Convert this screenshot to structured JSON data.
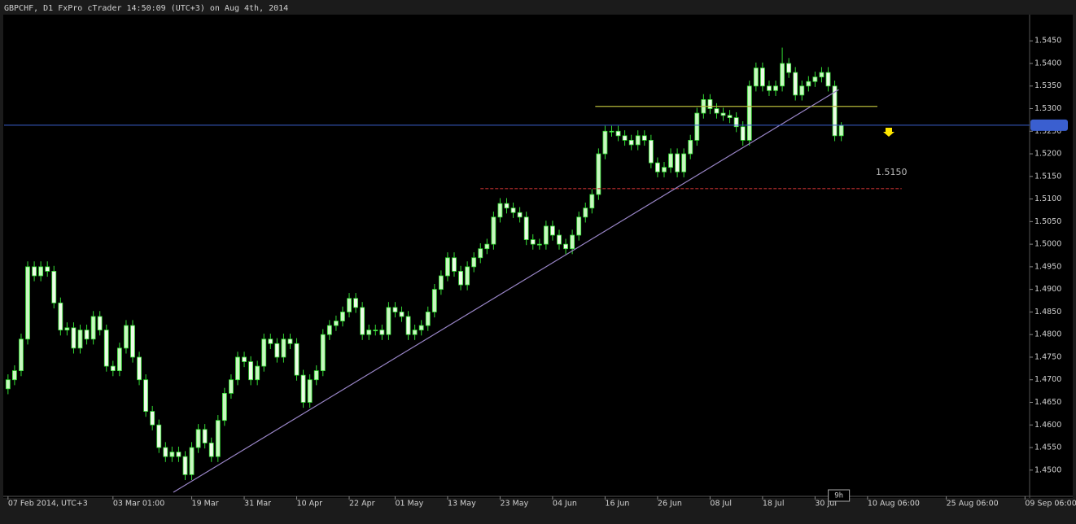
{
  "chart_data": {
    "type": "candlestick",
    "title": "GBPCHF, D1 FxPro cTrader 14:50:09 (UTC+3) on Aug 4th, 2014",
    "bull_color": "#c8f7c0",
    "bear_color": "#eefce8",
    "wick_color": "#33dd33",
    "open": [
      1.468,
      1.47,
      1.472,
      1.479,
      1.495,
      1.493,
      1.495,
      1.494,
      1.487,
      1.481,
      1.4815,
      1.477,
      1.481,
      1.479,
      1.484,
      1.481,
      1.473,
      1.472,
      1.477,
      1.482,
      1.475,
      1.47,
      1.463,
      1.46,
      1.455,
      1.453,
      1.454,
      1.453,
      1.449,
      1.455,
      1.459,
      1.456,
      1.453,
      1.461,
      1.467,
      1.47,
      1.475,
      1.474,
      1.47,
      1.473,
      1.479,
      1.478,
      1.475,
      1.479,
      1.478,
      1.471,
      1.465,
      1.47,
      1.472,
      1.48,
      1.482,
      1.483,
      1.485,
      1.488,
      1.486,
      1.48,
      1.481,
      1.481,
      1.48,
      1.486,
      1.485,
      1.484,
      1.48,
      1.481,
      1.482,
      1.485,
      1.49,
      1.493,
      1.497,
      1.494,
      1.491,
      1.495,
      1.497,
      1.499,
      1.5,
      1.506,
      1.509,
      1.508,
      1.507,
      1.506,
      1.501,
      1.5,
      1.5,
      1.504,
      1.502,
      1.5,
      1.499,
      1.502,
      1.506,
      1.508,
      1.511,
      1.52,
      1.525,
      1.525,
      1.524,
      1.523,
      1.522,
      1.524,
      1.523,
      1.518,
      1.516,
      1.517,
      1.52,
      1.516,
      1.52,
      1.523,
      1.529,
      1.532,
      1.53,
      1.529,
      1.5285,
      1.528,
      1.526,
      1.523,
      1.535,
      1.539,
      1.535,
      1.534,
      1.535,
      1.54,
      1.538,
      1.533,
      1.535,
      1.536,
      1.537,
      1.538,
      1.535,
      1.524
    ],
    "high": [
      1.4712,
      1.4732,
      1.4802,
      1.4962,
      1.4962,
      1.4962,
      1.4962,
      1.4952,
      1.4882,
      1.4827,
      1.4827,
      1.4822,
      1.4822,
      1.4852,
      1.4852,
      1.4822,
      1.4742,
      1.4782,
      1.4832,
      1.4832,
      1.4762,
      1.4712,
      1.4642,
      1.4612,
      1.4562,
      1.4552,
      1.4552,
      1.4542,
      1.4562,
      1.4602,
      1.4602,
      1.4572,
      1.4622,
      1.4682,
      1.4712,
      1.4762,
      1.4762,
      1.4752,
      1.4742,
      1.4802,
      1.4802,
      1.4792,
      1.4802,
      1.4802,
      1.4792,
      1.4722,
      1.4712,
      1.4732,
      1.4812,
      1.4832,
      1.4842,
      1.4862,
      1.4892,
      1.4892,
      1.4872,
      1.4822,
      1.4822,
      1.4822,
      1.4872,
      1.4872,
      1.4862,
      1.4852,
      1.4822,
      1.4832,
      1.4862,
      1.4912,
      1.4942,
      1.4982,
      1.4982,
      1.4952,
      1.4962,
      1.4982,
      1.5002,
      1.5012,
      1.5072,
      1.5102,
      1.5102,
      1.5092,
      1.5082,
      1.5072,
      1.5022,
      1.5012,
      1.5052,
      1.5052,
      1.5032,
      1.5012,
      1.5032,
      1.5072,
      1.5092,
      1.5122,
      1.5212,
      1.5262,
      1.5262,
      1.5262,
      1.5252,
      1.5242,
      1.5252,
      1.5252,
      1.5242,
      1.5192,
      1.5182,
      1.5212,
      1.5212,
      1.5212,
      1.5242,
      1.5302,
      1.5332,
      1.5332,
      1.5312,
      1.5302,
      1.5297,
      1.5292,
      1.5272,
      1.5362,
      1.5402,
      1.5402,
      1.5362,
      1.5362,
      1.5435,
      1.5412,
      1.5392,
      1.5362,
      1.5372,
      1.5382,
      1.5392,
      1.5392,
      1.5362,
      1.527
    ],
    "low": [
      1.4668,
      1.4688,
      1.4708,
      1.4778,
      1.4918,
      1.4918,
      1.4928,
      1.4858,
      1.4798,
      1.4798,
      1.4758,
      1.4758,
      1.4778,
      1.4778,
      1.4798,
      1.4718,
      1.4708,
      1.4708,
      1.4758,
      1.4738,
      1.4688,
      1.4618,
      1.4588,
      1.4538,
      1.4518,
      1.4518,
      1.4518,
      1.4478,
      1.4478,
      1.4538,
      1.4548,
      1.4518,
      1.4518,
      1.4598,
      1.4658,
      1.4688,
      1.4728,
      1.4688,
      1.4688,
      1.4718,
      1.4768,
      1.4738,
      1.4738,
      1.4768,
      1.4698,
      1.4638,
      1.4638,
      1.4688,
      1.4708,
      1.4788,
      1.4808,
      1.4818,
      1.4838,
      1.4848,
      1.4788,
      1.4788,
      1.4798,
      1.4788,
      1.4788,
      1.4838,
      1.4828,
      1.4788,
      1.4788,
      1.4798,
      1.4808,
      1.4838,
      1.4888,
      1.4918,
      1.4928,
      1.4898,
      1.4898,
      1.4938,
      1.4958,
      1.4978,
      1.4988,
      1.5048,
      1.5068,
      1.5058,
      1.5048,
      1.4998,
      1.4988,
      1.4988,
      1.4988,
      1.5008,
      1.4988,
      1.4978,
      1.4978,
      1.5008,
      1.5048,
      1.5068,
      1.5098,
      1.5188,
      1.5238,
      1.5228,
      1.5218,
      1.5208,
      1.5208,
      1.5218,
      1.5168,
      1.5148,
      1.5148,
      1.5158,
      1.5148,
      1.5148,
      1.5188,
      1.5218,
      1.5278,
      1.5288,
      1.5278,
      1.5273,
      1.5268,
      1.5248,
      1.5218,
      1.5218,
      1.5338,
      1.5338,
      1.5328,
      1.5328,
      1.5338,
      1.5368,
      1.5318,
      1.5318,
      1.5338,
      1.5348,
      1.5358,
      1.5338,
      1.5228,
      1.5228
    ],
    "close": [
      1.47,
      1.472,
      1.479,
      1.495,
      1.493,
      1.495,
      1.494,
      1.487,
      1.481,
      1.4815,
      1.477,
      1.481,
      1.479,
      1.484,
      1.481,
      1.473,
      1.472,
      1.477,
      1.482,
      1.475,
      1.47,
      1.463,
      1.46,
      1.455,
      1.453,
      1.454,
      1.453,
      1.449,
      1.455,
      1.459,
      1.456,
      1.453,
      1.461,
      1.467,
      1.47,
      1.475,
      1.474,
      1.47,
      1.473,
      1.479,
      1.478,
      1.475,
      1.479,
      1.478,
      1.471,
      1.465,
      1.47,
      1.472,
      1.48,
      1.482,
      1.483,
      1.485,
      1.488,
      1.486,
      1.48,
      1.481,
      1.481,
      1.48,
      1.486,
      1.485,
      1.484,
      1.48,
      1.481,
      1.482,
      1.485,
      1.49,
      1.493,
      1.497,
      1.494,
      1.491,
      1.495,
      1.497,
      1.499,
      1.5,
      1.506,
      1.509,
      1.508,
      1.507,
      1.506,
      1.501,
      1.5,
      1.5,
      1.504,
      1.502,
      1.5,
      1.499,
      1.502,
      1.506,
      1.508,
      1.511,
      1.52,
      1.525,
      1.525,
      1.524,
      1.523,
      1.522,
      1.524,
      1.523,
      1.518,
      1.516,
      1.517,
      1.52,
      1.516,
      1.52,
      1.523,
      1.529,
      1.532,
      1.53,
      1.529,
      1.5285,
      1.528,
      1.526,
      1.523,
      1.535,
      1.539,
      1.535,
      1.534,
      1.535,
      1.54,
      1.538,
      1.533,
      1.535,
      1.536,
      1.537,
      1.538,
      1.535,
      1.524,
      1.5263
    ],
    "xlim": [
      -0.6,
      155.7
    ],
    "xticks": [
      {
        "value": 0,
        "label": "07 Feb 2014, UTC+3"
      },
      {
        "value": 16,
        "label": "03 Mar 01:00"
      },
      {
        "value": 28,
        "label": "19 Mar"
      },
      {
        "value": 36,
        "label": "31 Mar"
      },
      {
        "value": 44,
        "label": "10 Apr"
      },
      {
        "value": 52,
        "label": "22 Apr"
      },
      {
        "value": 59,
        "label": "01 May"
      },
      {
        "value": 67,
        "label": "13 May"
      },
      {
        "value": 75,
        "label": "23 May"
      },
      {
        "value": 83,
        "label": "04 Jun"
      },
      {
        "value": 91,
        "label": "16 Jun"
      },
      {
        "value": 99,
        "label": "26 Jun"
      },
      {
        "value": 107,
        "label": "08 Jul"
      },
      {
        "value": 115,
        "label": "18 Jul"
      },
      {
        "value": 123,
        "label": "30 Jul"
      },
      {
        "value": 131,
        "label": "10 Aug 06:00"
      },
      {
        "value": 143,
        "label": "25 Aug 06:00"
      },
      {
        "value": 155,
        "label": "09 Sep 06:00"
      }
    ],
    "ylim": [
      1.4442,
      1.5508
    ],
    "yticks": [
      {
        "value": 1.45,
        "label": "1.4500"
      },
      {
        "value": 1.455,
        "label": "1.4550"
      },
      {
        "value": 1.46,
        "label": "1.4600"
      },
      {
        "value": 1.465,
        "label": "1.4650"
      },
      {
        "value": 1.47,
        "label": "1.4700"
      },
      {
        "value": 1.475,
        "label": "1.4750"
      },
      {
        "value": 1.48,
        "label": "1.4800"
      },
      {
        "value": 1.485,
        "label": "1.4850"
      },
      {
        "value": 1.49,
        "label": "1.4900"
      },
      {
        "value": 1.495,
        "label": "1.4950"
      },
      {
        "value": 1.5,
        "label": "1.5000"
      },
      {
        "value": 1.505,
        "label": "1.5050"
      },
      {
        "value": 1.51,
        "label": "1.5100"
      },
      {
        "value": 1.515,
        "label": "1.5150"
      },
      {
        "value": 1.52,
        "label": "1.5200"
      },
      {
        "value": 1.525,
        "label": "1.5250"
      },
      {
        "value": 1.53,
        "label": "1.5300"
      },
      {
        "value": 1.535,
        "label": "1.5350"
      },
      {
        "value": 1.54,
        "label": "1.5400"
      },
      {
        "value": 1.545,
        "label": "1.5450"
      }
    ],
    "current_price": 1.52633,
    "current_price_color": "#3a5fd0",
    "hlines": [
      {
        "y": 1.5305,
        "x": [
          89.5,
          132.5
        ],
        "color": "#b5b83a",
        "dashed": false
      },
      {
        "y": 1.5123,
        "x": [
          72,
          136.2
        ],
        "color": "#c03030",
        "dashed": true
      }
    ],
    "trendline": {
      "x": [
        25.2,
        126.6
      ],
      "y": [
        1.4451,
        1.5342
      ],
      "color": "#9a86c8"
    },
    "annotation": "1.5150",
    "countdown": "9h"
  }
}
